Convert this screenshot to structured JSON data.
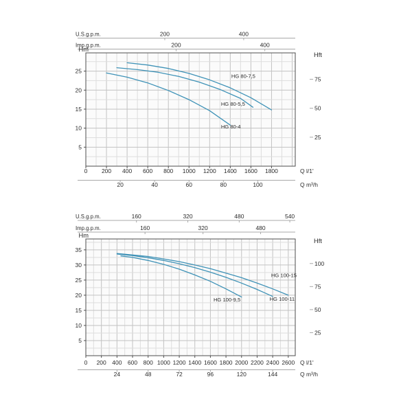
{
  "style": {
    "curve_color": "#3e92b7",
    "grid_minor": "#dddddd",
    "grid_major": "#c2c2c2",
    "frame": "#4d4d4d",
    "axis_line": "#a8a8a8",
    "text": "#2b2b2b",
    "series_label": "#4f4f4f",
    "plot_bg": "#fbfbfb",
    "page_bg": "#ffffff"
  },
  "chart_data": [
    {
      "type": "line",
      "axes": {
        "us": {
          "label": "U.S.g.p.m.",
          "ticks": [
            {
              "label": "200",
              "q": 765
            },
            {
              "label": "400",
              "q": 1530
            }
          ]
        },
        "imp": {
          "label": "Imp.g.p.m.",
          "ticks": [
            {
              "label": "200",
              "q": 875
            },
            {
              "label": "400",
              "q": 1735
            }
          ]
        },
        "main": {
          "label": "Q l/1'",
          "ticks": [
            0,
            200,
            400,
            600,
            800,
            1000,
            1200,
            1400,
            1600,
            1800
          ],
          "range": [
            0,
            2030
          ]
        },
        "m3h": {
          "label": "Q m³/h",
          "ticks": [
            20,
            40,
            60,
            80,
            100
          ]
        },
        "left": {
          "label": "Hm",
          "unit": "m",
          "ticks": [
            5,
            10,
            15,
            20,
            25
          ],
          "range": [
            0,
            29.8
          ]
        },
        "right": {
          "label": "Hft",
          "unit": "ft",
          "ticks": [
            25,
            50,
            75
          ]
        }
      },
      "grid": {
        "minor_q": 100,
        "major_q": 200,
        "minor_h": 2.5,
        "major_h": 5
      },
      "series": [
        {
          "name": "HG 80-7,5",
          "points": [
            [
              400,
              27.2
            ],
            [
              600,
              26.6
            ],
            [
              800,
              25.7
            ],
            [
              1000,
              24.4
            ],
            [
              1200,
              22.7
            ],
            [
              1400,
              20.6
            ],
            [
              1600,
              18.0
            ],
            [
              1800,
              14.8
            ]
          ],
          "label_at": [
            1410,
            23.2
          ]
        },
        {
          "name": "HG 80-5,5",
          "points": [
            [
              300,
              25.9
            ],
            [
              500,
              25.4
            ],
            [
              700,
              24.7
            ],
            [
              900,
              23.6
            ],
            [
              1100,
              22.1
            ],
            [
              1300,
              20.2
            ],
            [
              1500,
              17.8
            ],
            [
              1620,
              15.5
            ]
          ],
          "label_at": [
            1310,
            15.9
          ]
        },
        {
          "name": "HG 80-4",
          "points": [
            [
              200,
              24.5
            ],
            [
              400,
              23.4
            ],
            [
              600,
              21.9
            ],
            [
              800,
              19.9
            ],
            [
              1000,
              17.5
            ],
            [
              1200,
              14.6
            ],
            [
              1400,
              10.8
            ]
          ],
          "label_at": [
            1310,
            9.9
          ]
        }
      ]
    },
    {
      "type": "line",
      "axes": {
        "us": {
          "label": "U.S.g.p.m.",
          "ticks": [
            {
              "label": "160",
              "q": 650
            },
            {
              "label": "320",
              "q": 1310
            },
            {
              "label": "480",
              "q": 1970
            },
            {
              "label": "540",
              "q": 2620
            }
          ]
        },
        "imp": {
          "label": "Imp.g.p.m.",
          "ticks": [
            {
              "label": "160",
              "q": 760
            },
            {
              "label": "320",
              "q": 1505
            },
            {
              "label": "480",
              "q": 2245
            }
          ]
        },
        "main": {
          "label": "Q l/1'",
          "ticks": [
            0,
            200,
            400,
            600,
            800,
            1000,
            1200,
            1400,
            1600,
            1800,
            2000,
            2200,
            2400,
            2600
          ],
          "range": [
            0,
            2690
          ]
        },
        "m3h": {
          "label": "Q m³/h",
          "ticks": [
            24,
            48,
            72,
            96,
            120,
            144
          ]
        },
        "left": {
          "label": "Hm",
          "unit": "m",
          "ticks": [
            5,
            10,
            15,
            20,
            25,
            30,
            35
          ],
          "range": [
            0,
            38.6
          ]
        },
        "right": {
          "label": "Hft",
          "unit": "ft",
          "ticks": [
            25,
            50,
            75,
            100
          ]
        }
      },
      "grid": {
        "minor_q": 100,
        "major_q": 200,
        "minor_h": 2.5,
        "major_h": 5
      },
      "series": [
        {
          "name": "HG 100-15",
          "points": [
            [
              400,
              33.8
            ],
            [
              600,
              33.3
            ],
            [
              800,
              32.8
            ],
            [
              1000,
              32.0
            ],
            [
              1200,
              31.1
            ],
            [
              1400,
              30.0
            ],
            [
              1600,
              28.8
            ],
            [
              1800,
              27.3
            ],
            [
              2000,
              25.8
            ],
            [
              2200,
              24.0
            ],
            [
              2400,
              22.1
            ],
            [
              2600,
              20.0
            ]
          ],
          "label_at": [
            2380,
            26.0
          ]
        },
        {
          "name": "HG 100-11",
          "points": [
            [
              400,
              33.6
            ],
            [
              600,
              33.1
            ],
            [
              800,
              32.4
            ],
            [
              1000,
              31.5
            ],
            [
              1200,
              30.4
            ],
            [
              1400,
              29.1
            ],
            [
              1600,
              27.6
            ],
            [
              1800,
              25.9
            ],
            [
              2000,
              24.0
            ],
            [
              2200,
              21.9
            ],
            [
              2400,
              19.6
            ]
          ],
          "label_at": [
            2360,
            18.2
          ]
        },
        {
          "name": "HG 100-9,5",
          "points": [
            [
              450,
              33.0
            ],
            [
              600,
              32.5
            ],
            [
              800,
              31.5
            ],
            [
              1000,
              30.2
            ],
            [
              1200,
              28.6
            ],
            [
              1400,
              26.7
            ],
            [
              1600,
              24.6
            ],
            [
              1800,
              22.1
            ],
            [
              2000,
              19.4
            ]
          ],
          "label_at": [
            1640,
            17.9
          ]
        }
      ]
    }
  ]
}
